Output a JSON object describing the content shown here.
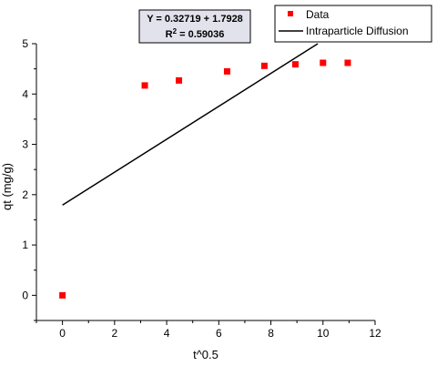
{
  "chart_data": {
    "type": "scatter",
    "xlabel": "t^0.5",
    "ylabel": "qt (mg/g)",
    "xlim": [
      -1,
      12
    ],
    "ylim": [
      -0.5,
      5
    ],
    "x_ticks": [
      0,
      2,
      4,
      6,
      8,
      10,
      12
    ],
    "y_ticks": [
      0,
      1,
      2,
      3,
      4,
      5
    ],
    "x_tick_labels": [
      "0",
      "2",
      "4",
      "6",
      "8",
      "10",
      "12"
    ],
    "y_tick_labels": [
      "0",
      "1",
      "2",
      "3",
      "4",
      "5"
    ],
    "grid": false,
    "series": [
      {
        "name": "Data",
        "kind": "scatter",
        "marker": "square",
        "color": "#ff0000",
        "x": [
          0,
          3.16,
          4.47,
          6.32,
          7.75,
          8.94,
          10.0,
          10.95
        ],
        "y": [
          0.0,
          4.17,
          4.27,
          4.45,
          4.56,
          4.59,
          4.62,
          4.62
        ]
      },
      {
        "name": "Intraparticle Diffusion",
        "kind": "line",
        "color": "#000000",
        "slope": 0.32719,
        "intercept": 1.7928,
        "x_range": [
          0,
          9.8
        ]
      }
    ],
    "annotation": {
      "line1": "Y = 0.32719 + 1.7928",
      "line2_prefix": "R",
      "line2_sup": "2",
      "line2_suffix": " = 0.59036"
    },
    "legend": {
      "placement": "top-right",
      "entries": [
        "Data",
        "Intraparticle Diffusion"
      ]
    }
  }
}
